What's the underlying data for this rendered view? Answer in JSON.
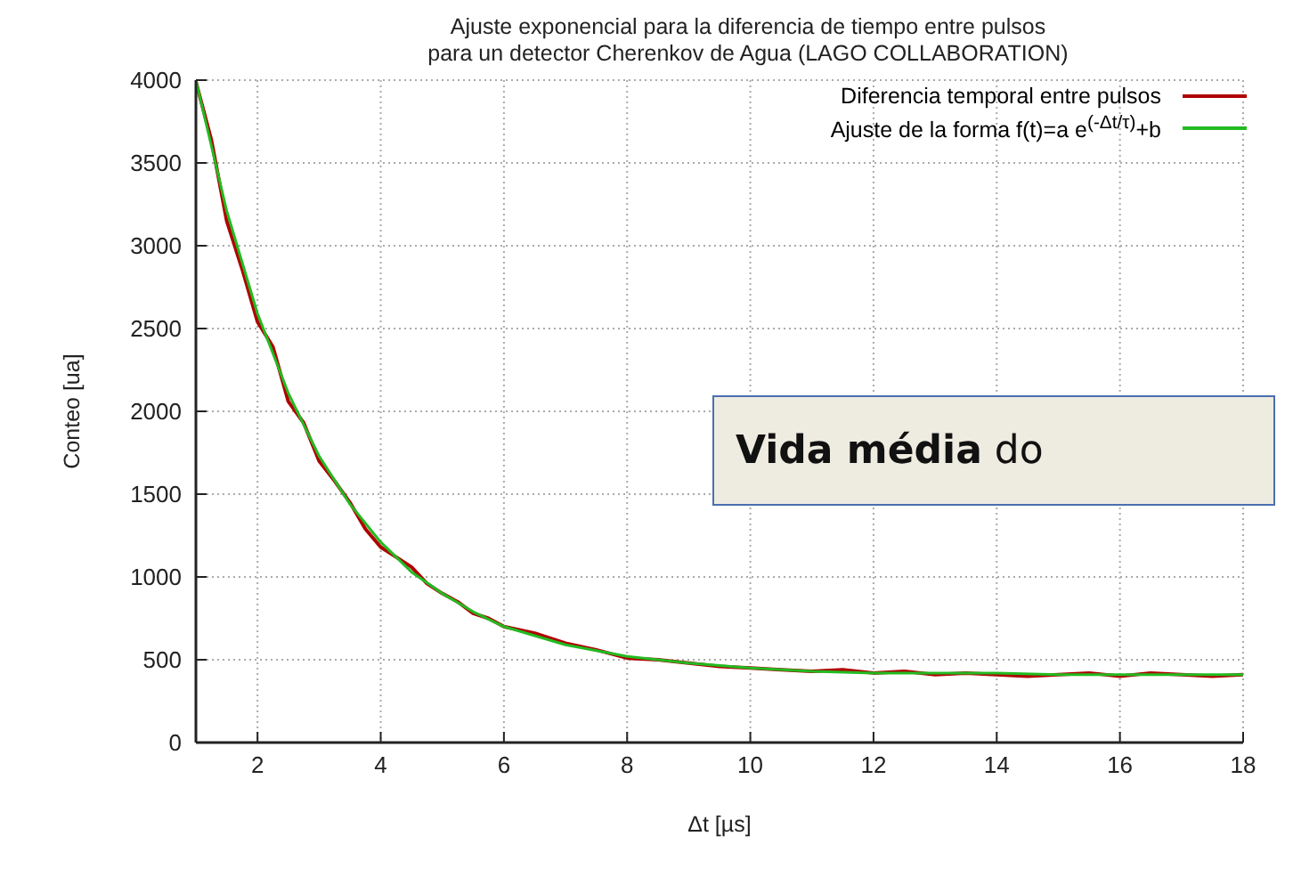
{
  "chart_data": {
    "type": "line",
    "title": "Ajuste exponencial para la diferencia de tiempo entre pulsos\npara un detector Cherenkov de Agua (LAGO COLLABORATION)",
    "xlabel": "Δt [µs]",
    "ylabel": "Conteo [ua]",
    "xlim": [
      1,
      18
    ],
    "xticks": [
      2,
      4,
      6,
      8,
      10,
      12,
      14,
      16,
      18
    ],
    "ylim": [
      0,
      4000
    ],
    "yticks": [
      0,
      500,
      1000,
      1500,
      2000,
      2500,
      3000,
      3500,
      4000
    ],
    "grid": true,
    "legend": "top right",
    "marker": "none",
    "line_style": "solid",
    "series": [
      {
        "name": "Diferencia temporal entre pulsos",
        "color": "#b00000",
        "x": [
          1,
          1.25,
          1.5,
          1.75,
          2,
          2.25,
          2.5,
          2.75,
          3,
          3.25,
          3.5,
          3.75,
          4,
          4.25,
          4.5,
          4.75,
          5,
          5.25,
          5.5,
          5.75,
          6,
          6.5,
          7,
          7.5,
          8,
          8.5,
          9,
          9.5,
          10,
          10.5,
          11,
          11.5,
          12,
          12.5,
          13,
          13.5,
          14,
          14.5,
          15,
          15.5,
          16,
          16.5,
          17,
          17.5,
          18
        ],
        "values": [
          3990,
          3640,
          3150,
          2860,
          2540,
          2390,
          2060,
          1930,
          1700,
          1580,
          1450,
          1290,
          1180,
          1120,
          1060,
          960,
          900,
          850,
          780,
          750,
          700,
          660,
          600,
          560,
          510,
          500,
          480,
          460,
          450,
          440,
          430,
          440,
          420,
          430,
          410,
          420,
          410,
          400,
          410,
          420,
          400,
          420,
          410,
          400,
          410
        ]
      },
      {
        "name": "Ajuste de la forma f(t)=a e$^{(-Δt/τ)}$+b",
        "color": "#22bb22",
        "x": [
          1,
          1.5,
          2,
          2.5,
          3,
          3.5,
          4,
          4.5,
          5,
          5.5,
          6,
          7,
          8,
          9,
          10,
          11,
          12,
          13,
          14,
          15,
          16,
          17,
          18
        ],
        "values": [
          4000,
          3210,
          2590,
          2110,
          1730,
          1440,
          1210,
          1030,
          900,
          790,
          700,
          590,
          520,
          480,
          450,
          430,
          420,
          420,
          420,
          410,
          410,
          410,
          410
        ]
      }
    ],
    "annotations": [
      "Vida média do"
    ]
  }
}
